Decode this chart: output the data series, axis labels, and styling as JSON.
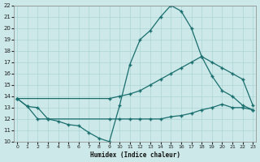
{
  "xlabel": "Humidex (Indice chaleur)",
  "bg_color": "#cce8e8",
  "line_color": "#1a6e6e",
  "grid_color": "#aad4d4",
  "line1_x": [
    0,
    1,
    2,
    3,
    4,
    5,
    6,
    7,
    8,
    9,
    10,
    11,
    12,
    13,
    14,
    15,
    16,
    17,
    18,
    19,
    20,
    21,
    22,
    23
  ],
  "line1_y": [
    13.8,
    13.1,
    13.0,
    12.0,
    11.8,
    11.5,
    11.4,
    10.8,
    10.3,
    10.0,
    13.2,
    16.8,
    19.0,
    19.8,
    21.0,
    22.0,
    21.5,
    20.0,
    17.5,
    15.8,
    14.5,
    14.0,
    13.2,
    12.8
  ],
  "line2_x": [
    0,
    9,
    10,
    11,
    12,
    13,
    14,
    15,
    16,
    17,
    18,
    19,
    20,
    21,
    22,
    23
  ],
  "line2_y": [
    13.8,
    13.8,
    14.0,
    14.2,
    14.5,
    15.0,
    15.5,
    16.0,
    16.5,
    17.0,
    17.5,
    17.0,
    16.5,
    16.0,
    15.5,
    13.2
  ],
  "line3_x": [
    0,
    1,
    2,
    3,
    9,
    10,
    11,
    12,
    13,
    14,
    15,
    16,
    17,
    18,
    19,
    20,
    21,
    22,
    23
  ],
  "line3_y": [
    13.8,
    13.1,
    12.0,
    12.0,
    12.0,
    12.0,
    12.0,
    12.0,
    12.0,
    12.0,
    12.2,
    12.3,
    12.5,
    12.8,
    13.0,
    13.3,
    13.0,
    13.0,
    12.8
  ],
  "xlim": [
    0,
    23
  ],
  "ylim": [
    10,
    22
  ],
  "yticks": [
    10,
    11,
    12,
    13,
    14,
    15,
    16,
    17,
    18,
    19,
    20,
    21,
    22
  ],
  "xticks": [
    0,
    1,
    2,
    3,
    4,
    5,
    6,
    7,
    8,
    9,
    10,
    11,
    12,
    13,
    14,
    15,
    16,
    17,
    18,
    19,
    20,
    21,
    22,
    23
  ]
}
